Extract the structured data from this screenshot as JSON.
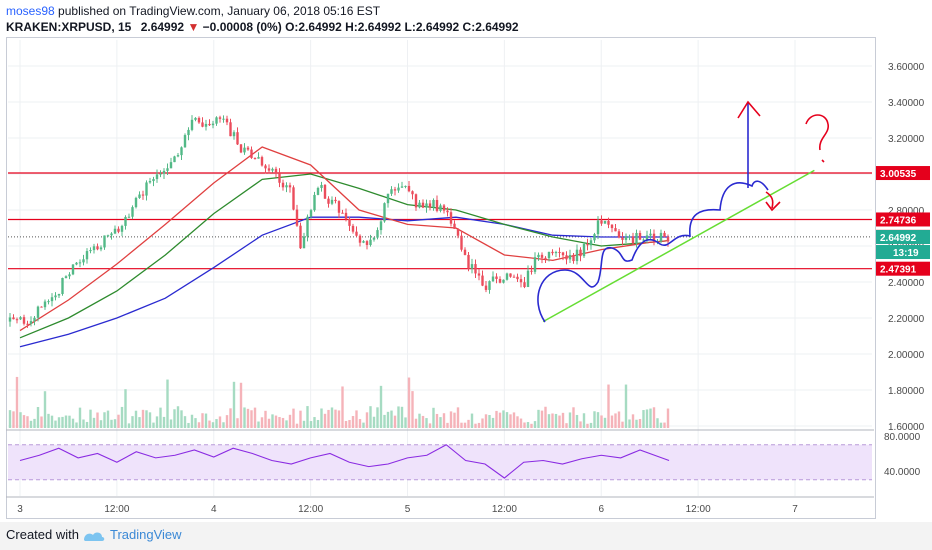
{
  "header": {
    "username": "moses98",
    "published_text": "published on TradingView.com, January 06, 2018 05:16 EST",
    "symbol": "KRAKEN:XRPUSD, 15",
    "price": "2.64992",
    "change_arrow": "▼",
    "change": "−0.00008 (0%)",
    "ohlc": "O:2.64992 H:2.64992 L:2.64992 C:2.64992"
  },
  "footer": {
    "created_with": "Created with",
    "brand": "TradingView",
    "logo_icon": "tradingview-logo-icon"
  },
  "colors": {
    "up": "#53b987",
    "down": "#eb4d5c",
    "level": "#e5001c",
    "ma_red": "#e04040",
    "ma_green": "#2e8b2e",
    "ma_blue": "#2a2ad0",
    "trend": "#66dd33",
    "rsi": "#8a2be2",
    "rsi_band": "#efe3fb",
    "price_label": "#22ab94"
  },
  "chart_data": [
    {
      "type": "line",
      "title": "KRAKEN:XRPUSD, 15",
      "x_tick_labels": [
        "3",
        "12:00",
        "4",
        "12:00",
        "5",
        "12:00",
        "6",
        "12:00",
        "7"
      ],
      "y_tick_labels": [
        "3.60000",
        "3.40000",
        "3.20000",
        "3.00000",
        "2.80000",
        "2.60000",
        "2.40000",
        "2.20000",
        "2.00000",
        "1.80000",
        "1.60000"
      ],
      "ylim": [
        1.6,
        3.6
      ],
      "grid": true,
      "series": [
        {
          "role": "price",
          "x": [
            0,
            0.05,
            0.1,
            0.15,
            0.2,
            0.25,
            0.3,
            0.35,
            0.4,
            0.45,
            0.5,
            0.55,
            0.6,
            0.65,
            0.7,
            0.75,
            0.8,
            0.85,
            0.9,
            0.95,
            1.0,
            1.05,
            1.1,
            1.15,
            1.2,
            1.25,
            1.3,
            1.35,
            1.4,
            1.45,
            1.5,
            1.55,
            1.6,
            1.65,
            1.7,
            1.75,
            1.8,
            1.85,
            1.9,
            1.95,
            2.0,
            2.05,
            2.1,
            2.15,
            2.2,
            2.25,
            2.3,
            2.35,
            2.4,
            2.45,
            2.5,
            2.55,
            2.6,
            2.65,
            2.7,
            2.75,
            2.8,
            2.85,
            2.9,
            2.95,
            3.0,
            3.05,
            3.1,
            3.15,
            3.2,
            3.25,
            3.3,
            3.35
          ],
          "values": [
            2.18,
            2.2,
            2.24,
            2.29,
            2.36,
            2.45,
            2.5,
            2.55,
            2.6,
            2.65,
            2.68,
            2.75,
            2.85,
            2.92,
            3.0,
            3.05,
            3.1,
            3.2,
            3.3,
            3.25,
            3.3,
            3.28,
            3.22,
            3.12,
            3.1,
            3.05,
            3.02,
            2.95,
            2.9,
            2.6,
            2.82,
            2.92,
            2.85,
            2.8,
            2.72,
            2.6,
            2.63,
            2.7,
            2.88,
            2.95,
            2.9,
            2.82,
            2.85,
            2.82,
            2.78,
            2.7,
            2.52,
            2.45,
            2.36,
            2.42,
            2.43,
            2.42,
            2.38,
            2.5,
            2.55,
            2.58,
            2.53,
            2.52,
            2.58,
            2.66,
            2.74,
            2.7,
            2.66,
            2.64,
            2.65,
            2.64,
            2.65,
            2.65
          ]
        },
        {
          "role": "ma-red",
          "x": [
            0,
            0.25,
            0.5,
            0.75,
            1.0,
            1.25,
            1.5,
            1.75,
            2.0,
            2.25,
            2.5,
            2.75,
            3.0,
            3.25,
            3.35
          ],
          "values": [
            2.13,
            2.3,
            2.5,
            2.72,
            2.95,
            3.15,
            3.05,
            2.8,
            2.72,
            2.7,
            2.55,
            2.52,
            2.58,
            2.62,
            2.63
          ]
        },
        {
          "role": "ma-green",
          "x": [
            0,
            0.25,
            0.5,
            0.75,
            1.0,
            1.25,
            1.5,
            1.75,
            2.0,
            2.25,
            2.5,
            2.75,
            3.0,
            3.25,
            3.35
          ],
          "values": [
            2.09,
            2.2,
            2.35,
            2.55,
            2.78,
            2.97,
            3.0,
            2.92,
            2.83,
            2.8,
            2.72,
            2.65,
            2.6,
            2.62,
            2.63
          ]
        },
        {
          "role": "ma-blue",
          "x": [
            0,
            0.25,
            0.5,
            0.75,
            1.0,
            1.25,
            1.5,
            1.75,
            2.0,
            2.25,
            2.5,
            2.75,
            3.0,
            3.25,
            3.35
          ],
          "values": [
            2.04,
            2.11,
            2.2,
            2.31,
            2.48,
            2.66,
            2.76,
            2.76,
            2.74,
            2.76,
            2.72,
            2.66,
            2.65,
            2.65,
            2.65
          ]
        },
        {
          "role": "trendline",
          "x": [
            2.7,
            4.1
          ],
          "values": [
            2.18,
            3.02
          ]
        }
      ],
      "horizontal_levels": [
        "3.00535",
        "2.74736",
        "2.47391"
      ],
      "last_price_line": "2.65085",
      "current_price": "2.64992",
      "countdown": "13:19"
    },
    {
      "type": "line",
      "title": "RSI",
      "y_tick_labels": [
        "80.0000",
        "40.0000"
      ],
      "band": [
        30,
        70
      ],
      "x": [
        0,
        0.1,
        0.2,
        0.3,
        0.4,
        0.5,
        0.6,
        0.7,
        0.8,
        0.9,
        1.0,
        1.1,
        1.2,
        1.3,
        1.4,
        1.5,
        1.6,
        1.7,
        1.8,
        1.9,
        2.0,
        2.1,
        2.2,
        2.3,
        2.4,
        2.5,
        2.6,
        2.7,
        2.8,
        2.9,
        3.0,
        3.1,
        3.2,
        3.3,
        3.35
      ],
      "values": [
        52,
        58,
        66,
        55,
        60,
        50,
        62,
        55,
        58,
        64,
        56,
        66,
        60,
        52,
        48,
        55,
        60,
        50,
        45,
        48,
        55,
        58,
        70,
        52,
        48,
        32,
        50,
        52,
        48,
        54,
        58,
        55,
        64,
        56,
        52
      ]
    }
  ]
}
